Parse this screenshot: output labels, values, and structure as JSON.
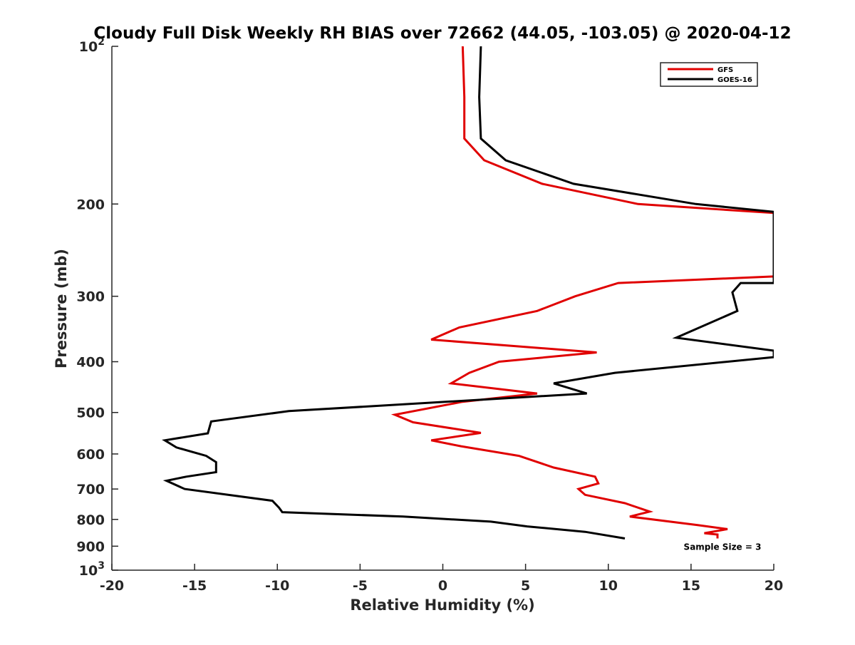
{
  "chart_data": {
    "type": "line",
    "title": "Cloudy Full Disk Weekly RH BIAS over 72662 (44.05, -103.05) @ 2020-04-12",
    "xlabel": "Relative Humidity (%)",
    "ylabel": "Pressure (mb)",
    "xlim": [
      -20,
      20
    ],
    "ylim": [
      100,
      1000
    ],
    "yscale": "log",
    "y_reversed": true,
    "grid": false,
    "legend_position": "top-right",
    "x_ticks": [
      -20,
      -15,
      -10,
      -5,
      0,
      5,
      10,
      15,
      20
    ],
    "x_tick_labels": [
      "-20",
      "-15",
      "-10",
      "-5",
      "0",
      "5",
      "10",
      "15",
      "20"
    ],
    "y_ticks": [
      100,
      200,
      300,
      400,
      500,
      600,
      700,
      800,
      900,
      1000
    ],
    "y_tick_labels": [
      {
        "base": "10",
        "exp": "2"
      },
      {
        "base": "200",
        "exp": ""
      },
      {
        "base": "300",
        "exp": ""
      },
      {
        "base": "400",
        "exp": ""
      },
      {
        "base": "500",
        "exp": ""
      },
      {
        "base": "600",
        "exp": ""
      },
      {
        "base": "700",
        "exp": ""
      },
      {
        "base": "800",
        "exp": ""
      },
      {
        "base": "900",
        "exp": ""
      },
      {
        "base": "10",
        "exp": "3"
      }
    ],
    "series": [
      {
        "name": "GFS",
        "color": "#e00000",
        "points": [
          [
            1.2,
            100
          ],
          [
            1.3,
            125
          ],
          [
            1.3,
            150
          ],
          [
            2.5,
            165
          ],
          [
            6.0,
            183
          ],
          [
            11.8,
            200
          ],
          [
            20,
            208
          ],
          [
            20,
            275
          ],
          [
            10.6,
            283
          ],
          [
            8,
            300
          ],
          [
            5.7,
            320
          ],
          [
            1.0,
            344
          ],
          [
            -0.7,
            363
          ],
          [
            9.3,
            384
          ],
          [
            3.4,
            400
          ],
          [
            1.6,
            420
          ],
          [
            0.5,
            440
          ],
          [
            5.7,
            460
          ],
          [
            1.2,
            477
          ],
          [
            -2.9,
            505
          ],
          [
            -1.8,
            522
          ],
          [
            2.3,
            547
          ],
          [
            -0.7,
            565
          ],
          [
            1.1,
            580
          ],
          [
            4.6,
            605
          ],
          [
            6.7,
            637
          ],
          [
            9.2,
            663
          ],
          [
            9.4,
            683
          ],
          [
            8.2,
            700
          ],
          [
            8.6,
            718
          ],
          [
            11.0,
            745
          ],
          [
            12.5,
            773
          ],
          [
            11.3,
            790
          ],
          [
            15.4,
            820
          ],
          [
            17.2,
            835
          ],
          [
            15.8,
            850
          ],
          [
            16.6,
            855
          ],
          [
            16.6,
            870
          ]
        ]
      },
      {
        "name": "GOES-16",
        "color": "#000000",
        "points": [
          [
            2.3,
            100
          ],
          [
            2.2,
            125
          ],
          [
            2.3,
            150
          ],
          [
            3.8,
            165
          ],
          [
            7.9,
            183
          ],
          [
            15.3,
            200
          ],
          [
            20,
            207
          ],
          [
            20,
            283
          ],
          [
            18.0,
            283
          ],
          [
            17.5,
            295
          ],
          [
            17.8,
            320
          ],
          [
            14.1,
            360
          ],
          [
            20,
            381
          ],
          [
            20,
            392
          ],
          [
            10.4,
            420
          ],
          [
            6.7,
            440
          ],
          [
            8.7,
            460
          ],
          [
            -9.3,
            497
          ],
          [
            -14.0,
            520
          ],
          [
            -14.2,
            548
          ],
          [
            -16.8,
            565
          ],
          [
            -16.1,
            583
          ],
          [
            -14.3,
            605
          ],
          [
            -13.7,
            622
          ],
          [
            -13.7,
            650
          ],
          [
            -15.5,
            663
          ],
          [
            -16.7,
            675
          ],
          [
            -15.6,
            700
          ],
          [
            -10.3,
            737
          ],
          [
            -9.9,
            760
          ],
          [
            -9.7,
            775
          ],
          [
            -2.4,
            790
          ],
          [
            2.9,
            808
          ],
          [
            5.1,
            825
          ],
          [
            8.6,
            845
          ],
          [
            11.0,
            870
          ]
        ]
      }
    ],
    "annotations": [
      {
        "text": "Sample Size = 3",
        "x": 16.9,
        "p": 900
      }
    ]
  }
}
